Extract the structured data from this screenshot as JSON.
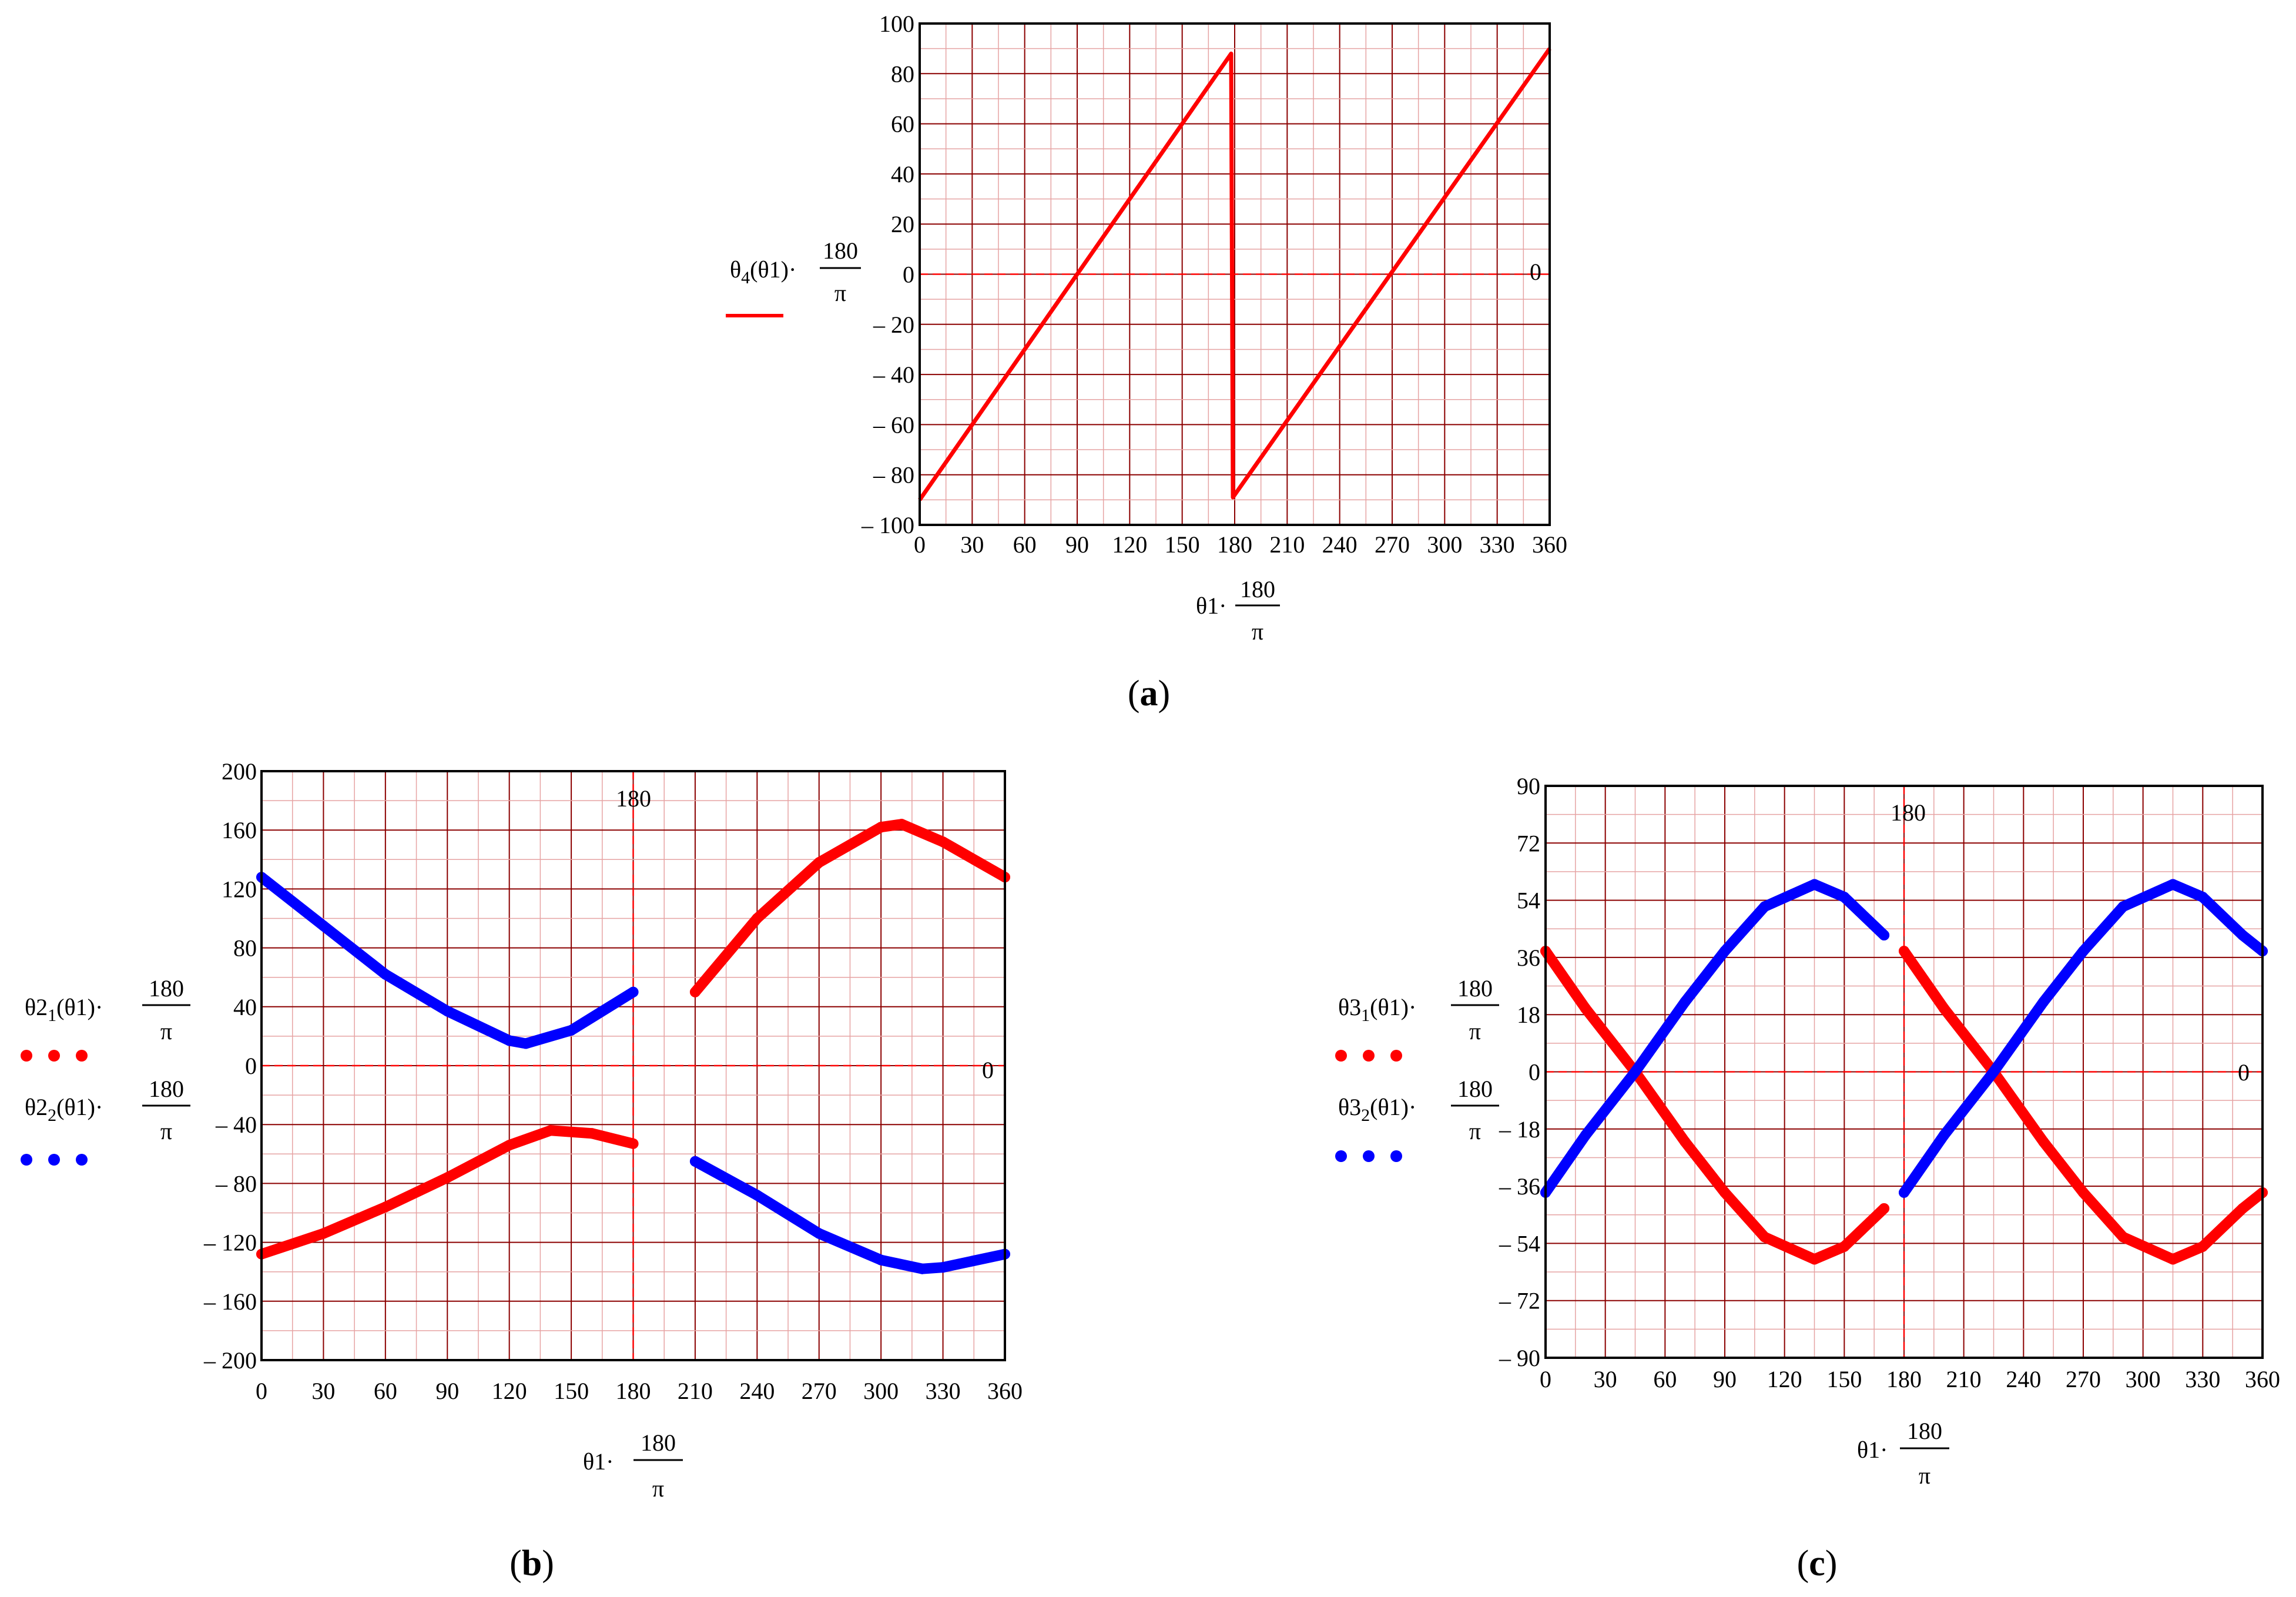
{
  "figure": {
    "panels": [
      "a",
      "b",
      "c"
    ]
  },
  "chart_data": [
    {
      "type": "line",
      "panel": "a",
      "caption_letter": "a",
      "y_label": {
        "base": "θ",
        "sub": "4",
        "arg": "(θ1)·",
        "num": "180",
        "den": "π"
      },
      "x_label": {
        "base": "θ1·",
        "num": "180",
        "den": "π"
      },
      "xlim": [
        0,
        360
      ],
      "ylim": [
        -100,
        100
      ],
      "xticks": [
        "0",
        "30",
        "60",
        "90",
        "120",
        "150",
        "180",
        "210",
        "240",
        "270",
        "300",
        "330",
        "360"
      ],
      "yticks": [
        "100",
        "80",
        "60",
        "40",
        "20",
        "0",
        "– 20",
        "– 40",
        "– 60",
        "– 80",
        "– 100"
      ],
      "marker_labels": {
        "hline_value": "0"
      },
      "ref_lines": {
        "h": 0,
        "v": null
      },
      "series": [
        {
          "name": "θ4(θ1)·180/π",
          "color": "#ff0000",
          "style": "solid",
          "x": [
            0,
            178,
            179,
            360
          ],
          "y": [
            -90,
            88,
            -89,
            90
          ]
        }
      ]
    },
    {
      "type": "line",
      "panel": "b",
      "caption_letter": "b",
      "y_labels": [
        {
          "base": "θ2",
          "sub": "1",
          "arg": "(θ1)·",
          "num": "180",
          "den": "π",
          "color": "#ff0000"
        },
        {
          "base": "θ2",
          "sub": "2",
          "arg": "(θ1)·",
          "num": "180",
          "den": "π",
          "color": "#0000ff"
        }
      ],
      "x_label": {
        "base": "θ1·",
        "num": "180",
        "den": "π"
      },
      "xlim": [
        0,
        360
      ],
      "ylim": [
        -200,
        200
      ],
      "xticks": [
        "0",
        "30",
        "60",
        "90",
        "120",
        "150",
        "180",
        "210",
        "240",
        "270",
        "300",
        "330",
        "360"
      ],
      "yticks": [
        "200",
        "160",
        "120",
        "80",
        "40",
        "0",
        "– 40",
        "– 80",
        "– 120",
        "– 160",
        "– 200"
      ],
      "marker_labels": {
        "vline_value": "180",
        "hline_value": "0"
      },
      "ref_lines": {
        "h": 0,
        "v": 180
      },
      "series": [
        {
          "name": "θ2₁ (red)",
          "color": "#ff0000",
          "style": "dotted",
          "x": [
            0,
            30,
            60,
            90,
            120,
            140,
            160,
            180,
            210,
            240,
            270,
            300,
            310,
            330,
            360
          ],
          "y": [
            -128,
            -114,
            -96,
            -76,
            -54,
            -44,
            -46,
            -53,
            50,
            100,
            138,
            162,
            164,
            152,
            128
          ]
        },
        {
          "name": "θ2₂ (blue)",
          "color": "#0000ff",
          "style": "dotted",
          "x": [
            0,
            30,
            60,
            90,
            120,
            128,
            150,
            180,
            210,
            240,
            270,
            300,
            320,
            330,
            360
          ],
          "y": [
            128,
            95,
            62,
            37,
            17,
            15,
            24,
            50,
            -65,
            -88,
            -114,
            -132,
            -138,
            -137,
            -128
          ]
        }
      ]
    },
    {
      "type": "line",
      "panel": "c",
      "caption_letter": "c",
      "y_labels": [
        {
          "base": "θ3",
          "sub": "1",
          "arg": "(θ1)·",
          "num": "180",
          "den": "π",
          "color": "#ff0000"
        },
        {
          "base": "θ3",
          "sub": "2",
          "arg": "(θ1)·",
          "num": "180",
          "den": "π",
          "color": "#0000ff"
        }
      ],
      "x_label": {
        "base": "θ1·",
        "num": "180",
        "den": "π"
      },
      "xlim": [
        0,
        360
      ],
      "ylim": [
        -90,
        90
      ],
      "xticks": [
        "0",
        "30",
        "60",
        "90",
        "120",
        "150",
        "180",
        "210",
        "240",
        "270",
        "300",
        "330",
        "360"
      ],
      "yticks": [
        "90",
        "72",
        "54",
        "36",
        "18",
        "0",
        "– 18",
        "– 36",
        "– 54",
        "– 72",
        "– 90"
      ],
      "marker_labels": {
        "vline_value": "180",
        "hline_value": "0"
      },
      "ref_lines": {
        "h": 0,
        "v": 180
      },
      "series": [
        {
          "name": "θ3₁ (red)",
          "color": "#ff0000",
          "style": "dotted",
          "x": [
            0,
            20,
            45,
            70,
            90,
            110,
            135,
            150,
            170,
            180,
            200,
            225,
            250,
            270,
            290,
            315,
            330,
            350,
            360
          ],
          "y": [
            38,
            20,
            0,
            -22,
            -38,
            -52,
            -59,
            -55,
            -43,
            38,
            20,
            0,
            -22,
            -38,
            -52,
            -59,
            -55,
            -43,
            -38
          ]
        },
        {
          "name": "θ3₂ (blue)",
          "color": "#0000ff",
          "style": "dotted",
          "x": [
            0,
            20,
            45,
            70,
            90,
            110,
            135,
            150,
            170,
            180,
            200,
            225,
            250,
            270,
            290,
            315,
            330,
            350,
            360
          ],
          "y": [
            -38,
            -20,
            0,
            22,
            38,
            52,
            59,
            55,
            43,
            -38,
            -20,
            0,
            22,
            38,
            52,
            59,
            55,
            43,
            38
          ]
        }
      ]
    }
  ]
}
